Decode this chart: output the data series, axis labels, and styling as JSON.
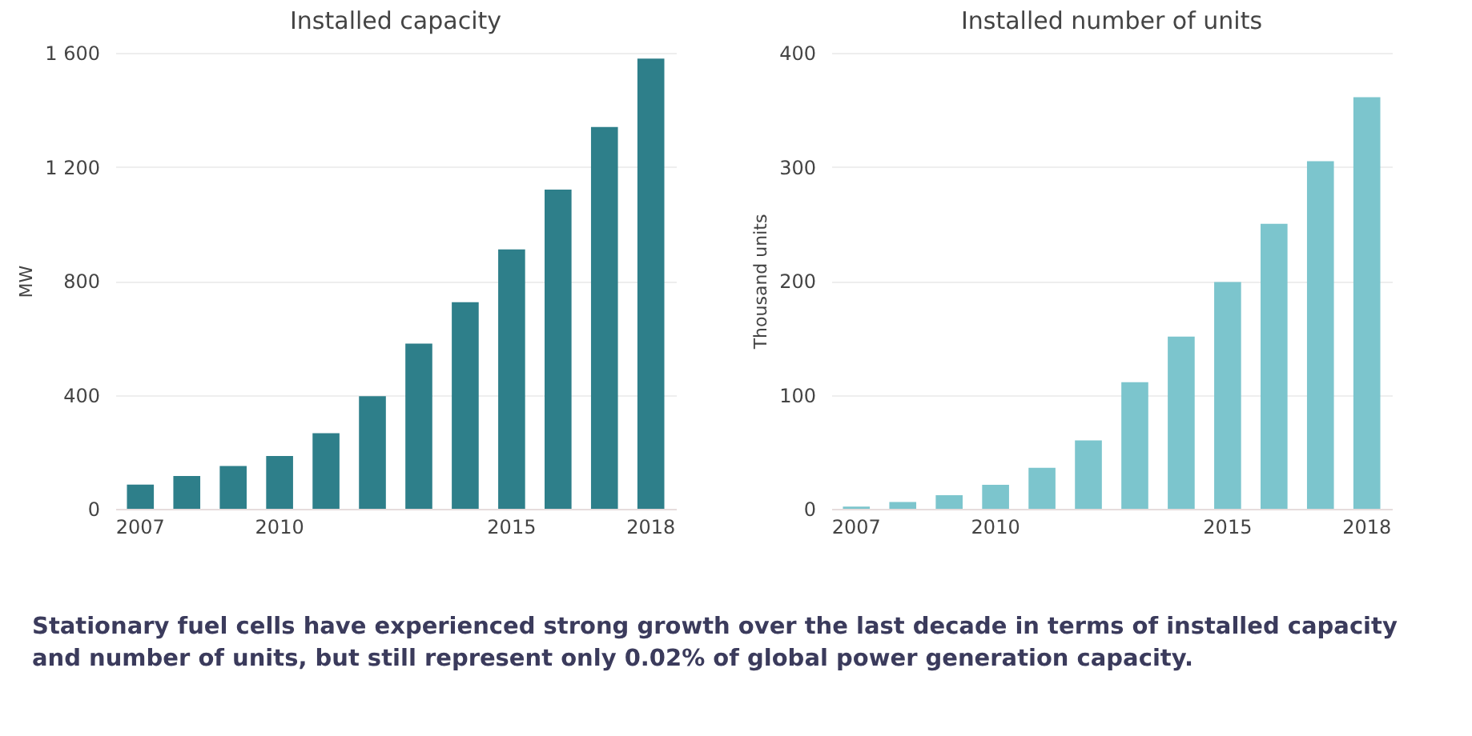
{
  "chart_data": [
    {
      "type": "bar",
      "title": "Installed capacity",
      "ylabel": "MW",
      "categories": [
        "2007",
        null,
        null,
        "2010",
        null,
        null,
        null,
        null,
        "2015",
        null,
        null,
        "2018"
      ],
      "values": [
        85,
        115,
        150,
        185,
        265,
        395,
        580,
        725,
        910,
        1120,
        1340,
        1580
      ],
      "color": "#2e7f8a",
      "ylim": [
        0,
        1600
      ],
      "yticks": [
        0,
        400,
        800,
        {
          "value": 1200,
          "label": "1 200"
        },
        {
          "value": 1600,
          "label": "1 600"
        }
      ],
      "grid": "y",
      "annotations": [
        "Stationary fuel cells have experienced strong growth over the last decade in terms of installed capacity and number of units, but still represent only 0.02% of global power generation capacity."
      ]
    },
    {
      "type": "bar",
      "title": "Installed number of units",
      "ylabel": "Thousand units",
      "categories": [
        "2007",
        null,
        null,
        "2010",
        null,
        null,
        null,
        null,
        "2015",
        null,
        null,
        "2018"
      ],
      "values": [
        2,
        6,
        12,
        21,
        36,
        60,
        111,
        151,
        199,
        250,
        305,
        361
      ],
      "color": "#7cc5cd",
      "ylim": [
        0,
        400
      ],
      "yticks": [
        0,
        100,
        200,
        300,
        400
      ],
      "grid": "y"
    }
  ]
}
